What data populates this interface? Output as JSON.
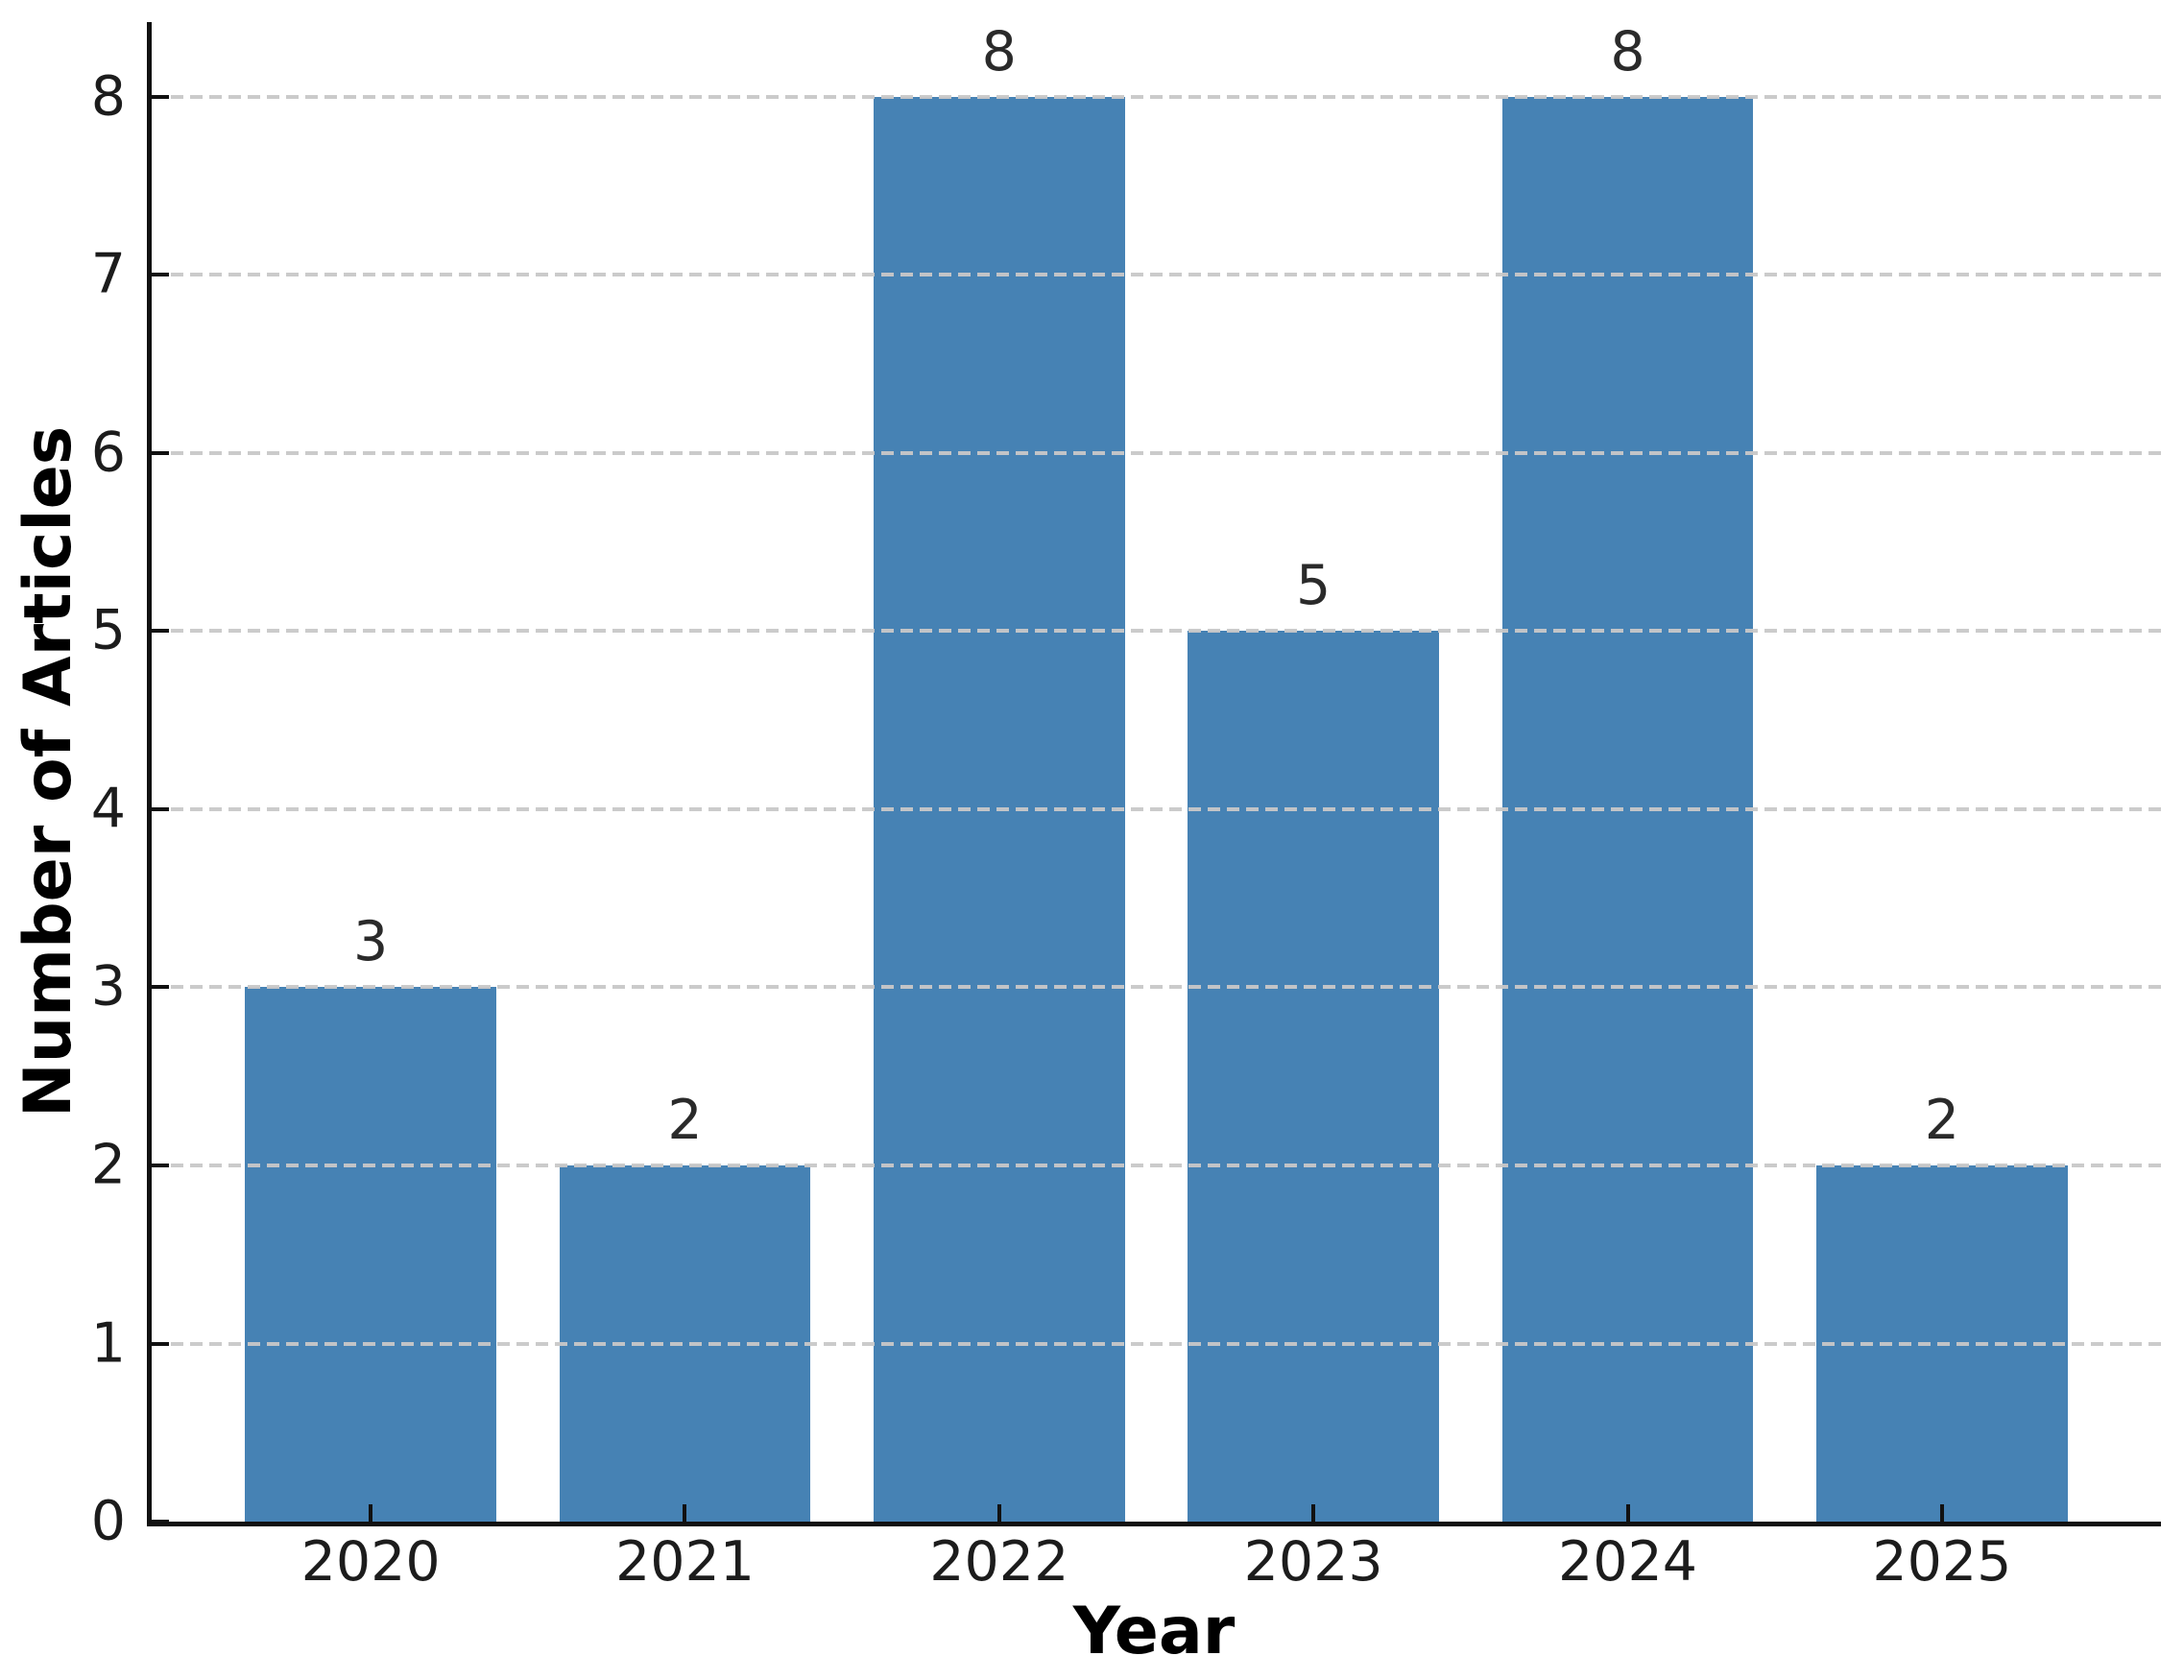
{
  "chart_data": {
    "type": "bar",
    "categories": [
      "2020",
      "2021",
      "2022",
      "2023",
      "2024",
      "2025"
    ],
    "values": [
      3,
      2,
      8,
      5,
      8,
      2
    ],
    "bar_labels": [
      "3",
      "2",
      "8",
      "5",
      "8",
      "2"
    ],
    "title": "",
    "xlabel": "Year",
    "ylabel": "Number of Articles",
    "ylim": [
      0,
      8.42
    ],
    "yticks": [
      0,
      1,
      2,
      3,
      4,
      5,
      6,
      7,
      8
    ],
    "grid": "horizontal-dashed-over-bars",
    "legend": "none",
    "colors": {
      "bar": "#4682B4",
      "grid": "#c8c8c8",
      "axis": "#111111",
      "tick_text": "#1c1c1c",
      "label_text": "#000000"
    }
  }
}
